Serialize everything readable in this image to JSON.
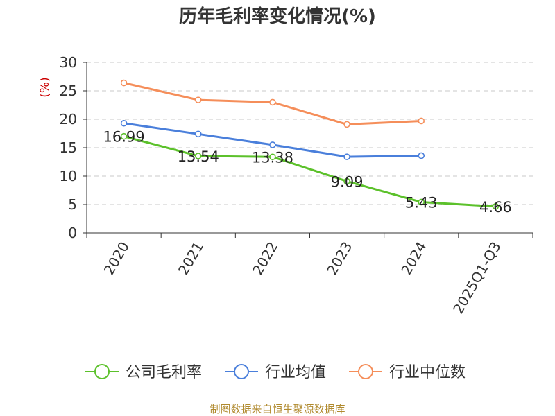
{
  "chart_data": {
    "type": "line",
    "title": "历年毛利率变化情况(%)",
    "ylabel": "(%)",
    "categories": [
      "2020",
      "2021",
      "2022",
      "2023",
      "2024",
      "2025Q1-Q3"
    ],
    "ylim": [
      0,
      30
    ],
    "yticks": [
      0,
      5,
      10,
      15,
      20,
      25,
      30
    ],
    "grid": true,
    "legend_position": "bottom",
    "series": [
      {
        "name": "公司毛利率",
        "color": "#5cc12b",
        "labeled": true,
        "values": [
          16.99,
          13.54,
          13.38,
          9.09,
          5.43,
          4.66
        ],
        "labels": [
          "16.99",
          "13.54",
          "13.38",
          "9.09",
          "5.43",
          "4.66"
        ]
      },
      {
        "name": "行业均值",
        "color": "#4a7fdb",
        "labeled": false,
        "values": [
          19.3,
          17.4,
          15.5,
          13.4,
          13.6,
          null
        ]
      },
      {
        "name": "行业中位数",
        "color": "#f58e5a",
        "labeled": false,
        "values": [
          26.4,
          23.4,
          23.0,
          19.1,
          19.7,
          null
        ]
      }
    ]
  },
  "footer": {
    "source": "制图数据来自恒生聚源数据库"
  }
}
